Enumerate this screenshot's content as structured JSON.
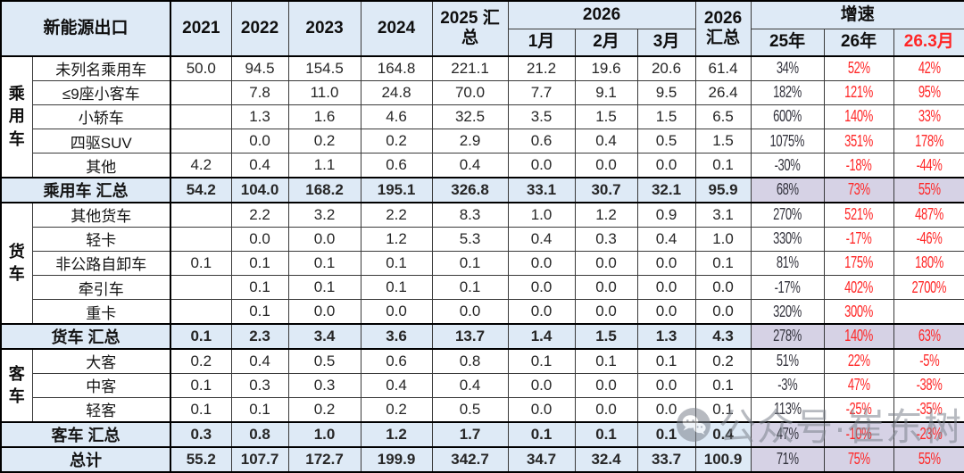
{
  "chart_data": {
    "type": "table",
    "title": "新能源出口",
    "header": {
      "row_title": "新能源出口",
      "years": [
        "2021",
        "2022",
        "2023",
        "2024"
      ],
      "total_2025": "2025 汇总",
      "group_2026": "2026",
      "months": [
        "1月",
        "2月",
        "3月"
      ],
      "total_2026": "2026 汇总",
      "growth_group": "增速",
      "growth_cols": [
        "25年",
        "26年",
        "26.3月"
      ]
    },
    "column_keys": [
      "2021",
      "2022",
      "2023",
      "2024",
      "2025-total",
      "2026-m1",
      "2026-m2",
      "2026-m3",
      "2026-total",
      "growth-25",
      "growth-26",
      "growth-26-3"
    ],
    "rows": [
      {
        "type": "data",
        "group": "乘用车",
        "group_span": 5,
        "label": "未列名乘用车",
        "values": [
          "50.0",
          "94.5",
          "154.5",
          "164.8",
          "221.1",
          "21.2",
          "19.6",
          "20.6",
          "61.4",
          "34%",
          "52%",
          "42%"
        ]
      },
      {
        "type": "data",
        "label": "≤9座小客车",
        "values": [
          "",
          "7.8",
          "11.0",
          "24.8",
          "70.0",
          "7.7",
          "9.1",
          "9.5",
          "26.4",
          "182%",
          "121%",
          "95%"
        ]
      },
      {
        "type": "data",
        "label": "小轿车",
        "values": [
          "",
          "1.3",
          "1.6",
          "4.6",
          "32.5",
          "3.5",
          "1.5",
          "1.5",
          "6.5",
          "600%",
          "140%",
          "33%"
        ]
      },
      {
        "type": "data",
        "label": "四驱SUV",
        "values": [
          "",
          "0.0",
          "0.2",
          "0.2",
          "2.9",
          "0.6",
          "0.4",
          "0.5",
          "1.5",
          "1075%",
          "351%",
          "178%"
        ]
      },
      {
        "type": "data",
        "label": "其他",
        "values": [
          "4.2",
          "0.4",
          "1.1",
          "0.6",
          "0.4",
          "0.0",
          "0.0",
          "0.0",
          "0.1",
          "-30%",
          "-18%",
          "-44%"
        ]
      },
      {
        "type": "subtotal",
        "label": "乘用车 汇总",
        "values": [
          "54.2",
          "104.0",
          "168.2",
          "195.1",
          "326.8",
          "33.1",
          "30.7",
          "32.1",
          "95.9",
          "68%",
          "73%",
          "55%"
        ]
      },
      {
        "type": "data",
        "group": "货车",
        "group_span": 5,
        "label": "其他货车",
        "values": [
          "",
          "2.2",
          "3.2",
          "2.2",
          "8.3",
          "1.0",
          "1.2",
          "0.9",
          "3.1",
          "270%",
          "521%",
          "487%"
        ]
      },
      {
        "type": "data",
        "label": "轻卡",
        "values": [
          "",
          "0.0",
          "0.0",
          "1.2",
          "5.3",
          "0.4",
          "0.3",
          "0.4",
          "1.0",
          "330%",
          "-17%",
          "-46%"
        ]
      },
      {
        "type": "data",
        "label": "非公路自卸车",
        "values": [
          "0.1",
          "0.1",
          "0.1",
          "0.1",
          "0.1",
          "0.0",
          "0.0",
          "0.0",
          "0.1",
          "81%",
          "175%",
          "180%"
        ]
      },
      {
        "type": "data",
        "label": "牵引车",
        "values": [
          "",
          "0.1",
          "0.1",
          "0.1",
          "0.1",
          "0.0",
          "0.0",
          "0.0",
          "0.0",
          "-17%",
          "402%",
          "2700%"
        ]
      },
      {
        "type": "data",
        "label": "重卡",
        "values": [
          "",
          "0.1",
          "0.0",
          "0.0",
          "0.0",
          "0.0",
          "0.0",
          "0.0",
          "0.0",
          "320%",
          "300%",
          ""
        ]
      },
      {
        "type": "subtotal",
        "label": "货车 汇总",
        "values": [
          "0.1",
          "2.3",
          "3.4",
          "3.6",
          "13.7",
          "1.4",
          "1.5",
          "1.3",
          "4.3",
          "278%",
          "140%",
          "63%"
        ]
      },
      {
        "type": "data",
        "group": "客车",
        "group_span": 3,
        "label": "大客",
        "values": [
          "0.2",
          "0.4",
          "0.5",
          "0.6",
          "0.8",
          "0.1",
          "0.1",
          "0.1",
          "0.2",
          "51%",
          "22%",
          "-5%"
        ]
      },
      {
        "type": "data",
        "label": "中客",
        "values": [
          "0.1",
          "0.3",
          "0.3",
          "0.4",
          "0.4",
          "0.0",
          "0.0",
          "0.0",
          "0.1",
          "-3%",
          "47%",
          "-38%"
        ]
      },
      {
        "type": "data",
        "label": "轻客",
        "values": [
          "0.1",
          "0.1",
          "0.2",
          "0.2",
          "0.5",
          "0.0",
          "0.0",
          "0.0",
          "0.1",
          "113%",
          "-25%",
          "-35%"
        ]
      },
      {
        "type": "subtotal",
        "label": "客车 汇总",
        "values": [
          "0.3",
          "0.8",
          "1.0",
          "1.2",
          "1.7",
          "0.1",
          "0.1",
          "0.1",
          "0.4",
          "47%",
          "-10%",
          "-23%"
        ]
      },
      {
        "type": "grand",
        "label": "总计",
        "values": [
          "55.2",
          "107.7",
          "172.7",
          "199.9",
          "342.7",
          "34.7",
          "32.4",
          "33.7",
          "100.9",
          "71%",
          "75%",
          "55%"
        ]
      }
    ]
  },
  "watermark": {
    "text": "公众号·崔东树",
    "icon": "wechat-icon"
  },
  "colors": {
    "header_bg": "#DEEAF6",
    "summary_row_bg": "#DEEAF6",
    "summary_growth_bg": "#D6D2E5",
    "growth_red": "#FF2626",
    "grid_line": "#3A3A3A"
  }
}
